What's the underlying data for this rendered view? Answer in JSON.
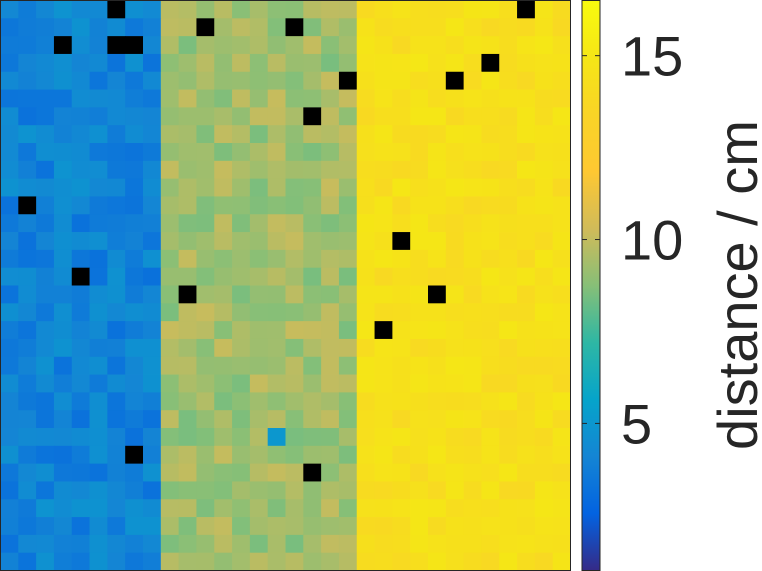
{
  "chart_data": {
    "type": "heatmap",
    "colormap": "parula",
    "grid_rows": 32,
    "grid_cols": 32,
    "zones": [
      {
        "label": "left",
        "cols": [
          0,
          8
        ],
        "mean": 4.0,
        "noise": 0.8
      },
      {
        "label": "middle",
        "cols": [
          9,
          19
        ],
        "mean": 9.3,
        "noise": 0.8
      },
      {
        "label": "right",
        "cols": [
          20,
          31
        ],
        "mean": 14.4,
        "noise": 0.6
      }
    ],
    "special_cells": [
      {
        "row": 24,
        "col": 15,
        "value": 5.0
      }
    ],
    "missing_color": "#000000",
    "missing_cells": [
      [
        0,
        6
      ],
      [
        0,
        29
      ],
      [
        1,
        11
      ],
      [
        1,
        16
      ],
      [
        2,
        3
      ],
      [
        2,
        6
      ],
      [
        2,
        7
      ],
      [
        3,
        27
      ],
      [
        4,
        19
      ],
      [
        4,
        25
      ],
      [
        6,
        17
      ],
      [
        11,
        1
      ],
      [
        13,
        22
      ],
      [
        15,
        4
      ],
      [
        16,
        10
      ],
      [
        16,
        24
      ],
      [
        18,
        21
      ],
      [
        25,
        7
      ],
      [
        26,
        17
      ]
    ],
    "colorbar": {
      "label": "distance / cm",
      "clim": [
        1,
        16.5
      ],
      "ticks": [
        5,
        10,
        15
      ],
      "tick_labels": [
        "5",
        "10",
        "15"
      ]
    }
  }
}
